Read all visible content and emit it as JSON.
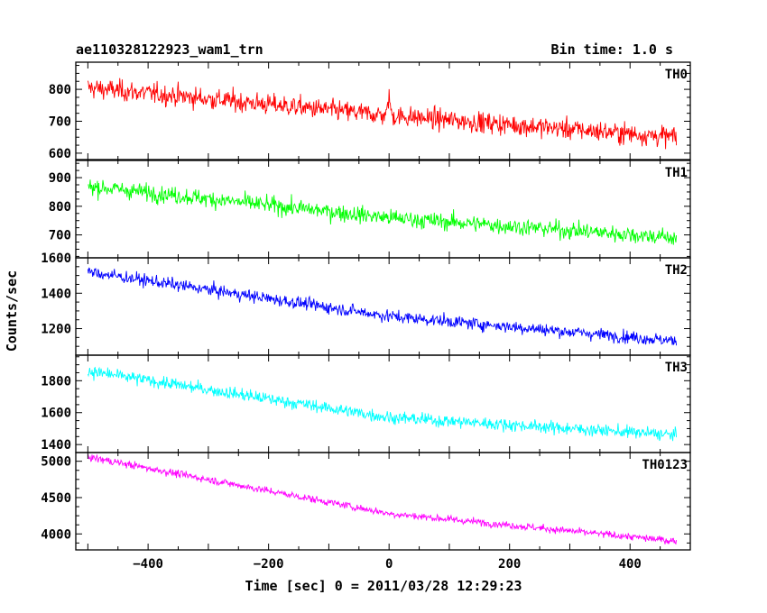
{
  "header": {
    "title": "ae110328122923_wam1_trn",
    "bin_time": "Bin time: 1.0 s"
  },
  "chart_data": {
    "type": "line",
    "xlabel": "Time [sec] 0 = 2011/03/28 12:29:23",
    "ylabel": "Counts/sec",
    "xlim": [
      -520,
      500
    ],
    "x_range": [
      -500,
      477
    ],
    "bin_seconds": 1.0,
    "x_ticks": [
      -400,
      -200,
      0,
      200,
      400
    ],
    "x_tick_labels": [
      "−400",
      "−200",
      "0",
      "200",
      "400"
    ],
    "panels": [
      {
        "name": "TH0",
        "color": "#ff0000",
        "ylim": [
          580,
          885
        ],
        "yticks": [
          600,
          700,
          800
        ],
        "ytick_labels": [
          "600",
          "700",
          "800"
        ],
        "trend": [
          [
            -500,
            805
          ],
          [
            0,
            718
          ],
          [
            477,
            650
          ]
        ],
        "noise": 42,
        "feature": {
          "x": 0,
          "height": 70,
          "width": 4
        }
      },
      {
        "name": "TH1",
        "color": "#00ff00",
        "ylim": [
          620,
          960
        ],
        "yticks": [
          700,
          800,
          900
        ],
        "ytick_labels": [
          "700",
          "800",
          "900"
        ],
        "trend": [
          [
            -500,
            870
          ],
          [
            0,
            760
          ],
          [
            477,
            690
          ]
        ],
        "noise": 38
      },
      {
        "name": "TH2",
        "color": "#0000ff",
        "ylim": [
          1050,
          1600
        ],
        "yticks": [
          1200,
          1400,
          1600
        ],
        "ytick_labels": [
          "1200",
          "1400",
          "1600"
        ],
        "trend": [
          [
            -500,
            1520
          ],
          [
            0,
            1270
          ],
          [
            477,
            1130
          ]
        ],
        "noise": 45
      },
      {
        "name": "TH3",
        "color": "#00ffff",
        "ylim": [
          1350,
          1960
        ],
        "yticks": [
          1400,
          1600,
          1800
        ],
        "ytick_labels": [
          "1400",
          "1600",
          "1800"
        ],
        "trend": [
          [
            -500,
            1860
          ],
          [
            0,
            1570
          ],
          [
            477,
            1460
          ]
        ],
        "noise": 50
      },
      {
        "name": "TH0123",
        "color": "#ff00ff",
        "ylim": [
          3780,
          5120
        ],
        "yticks": [
          4000,
          4500,
          5000
        ],
        "ytick_labels": [
          "4000",
          "4500",
          "5000"
        ],
        "trend": [
          [
            -500,
            5060
          ],
          [
            0,
            4280
          ],
          [
            477,
            3900
          ]
        ],
        "noise": 65
      }
    ]
  }
}
